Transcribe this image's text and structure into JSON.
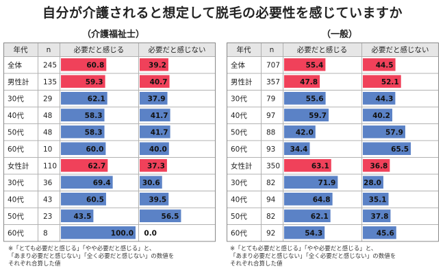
{
  "title": "自分が介護されると想定して脱毛の必要性を感じていますか",
  "colors": {
    "red": "#f0415a",
    "blue": "#5b82c6",
    "header_bg": "#e6e6e6",
    "grid": "#b0b0b0"
  },
  "chart_data": [
    {
      "type": "table",
      "title": "（介護福祉士）",
      "columns": [
        "年代",
        "n",
        "必要だと感じる",
        "必要だと感じない"
      ],
      "rows": [
        {
          "label": "全体",
          "n": 245,
          "need": 60.8,
          "no_need": 39.2,
          "highlight": true
        },
        {
          "label": "男性計",
          "n": 135,
          "need": 59.3,
          "no_need": 40.7,
          "highlight": true
        },
        {
          "label": "30代",
          "n": 29,
          "need": 62.1,
          "no_need": 37.9,
          "highlight": false
        },
        {
          "label": "40代",
          "n": 48,
          "need": 58.3,
          "no_need": 41.7,
          "highlight": false
        },
        {
          "label": "50代",
          "n": 48,
          "need": 58.3,
          "no_need": 41.7,
          "highlight": false
        },
        {
          "label": "60代",
          "n": 10,
          "need": 60.0,
          "no_need": 40.0,
          "highlight": false
        },
        {
          "label": "女性計",
          "n": 110,
          "need": 62.7,
          "no_need": 37.3,
          "highlight": true
        },
        {
          "label": "30代",
          "n": 36,
          "need": 69.4,
          "no_need": 30.6,
          "highlight": false
        },
        {
          "label": "40代",
          "n": 43,
          "need": 60.5,
          "no_need": 39.5,
          "highlight": false
        },
        {
          "label": "50代",
          "n": 23,
          "need": 43.5,
          "no_need": 56.5,
          "highlight": false
        },
        {
          "label": "60代",
          "n": 8,
          "need": 100.0,
          "no_need": 0.0,
          "highlight": false
        }
      ],
      "note": [
        "※「とても必要だと感じる」「やや必要だと感じる」と、",
        "「あまり必要だと感じない」「全く必要だと感じない」の数値を",
        "それぞれ合算した値"
      ]
    },
    {
      "type": "table",
      "title": "（一般）",
      "columns": [
        "年代",
        "n",
        "必要だと感じる",
        "必要だと感じない"
      ],
      "rows": [
        {
          "label": "全体",
          "n": 707,
          "need": 55.4,
          "no_need": 44.5,
          "highlight": true
        },
        {
          "label": "男性計",
          "n": 357,
          "need": 47.8,
          "no_need": 52.1,
          "highlight": true
        },
        {
          "label": "30代",
          "n": 79,
          "need": 55.6,
          "no_need": 44.3,
          "highlight": false
        },
        {
          "label": "40代",
          "n": 97,
          "need": 59.7,
          "no_need": 40.2,
          "highlight": false
        },
        {
          "label": "50代",
          "n": 88,
          "need": 42.0,
          "no_need": 57.9,
          "highlight": false
        },
        {
          "label": "60代",
          "n": 93,
          "need": 34.4,
          "no_need": 65.5,
          "highlight": false
        },
        {
          "label": "女性計",
          "n": 350,
          "need": 63.1,
          "no_need": 36.8,
          "highlight": true
        },
        {
          "label": "30代",
          "n": 82,
          "need": 71.9,
          "no_need": 28.0,
          "highlight": false
        },
        {
          "label": "40代",
          "n": 94,
          "need": 64.8,
          "no_need": 35.1,
          "highlight": false
        },
        {
          "label": "50代",
          "n": 82,
          "need": 62.1,
          "no_need": 37.8,
          "highlight": false
        },
        {
          "label": "60代",
          "n": 92,
          "need": 54.3,
          "no_need": 45.6,
          "highlight": false
        }
      ],
      "note": [
        "※「とても必要だと感じる」「やや必要だと感じる」と、",
        "「あまり必要だと感じない」「全く必要だと感じない」の数値を",
        "それぞれ合算した値"
      ]
    }
  ]
}
